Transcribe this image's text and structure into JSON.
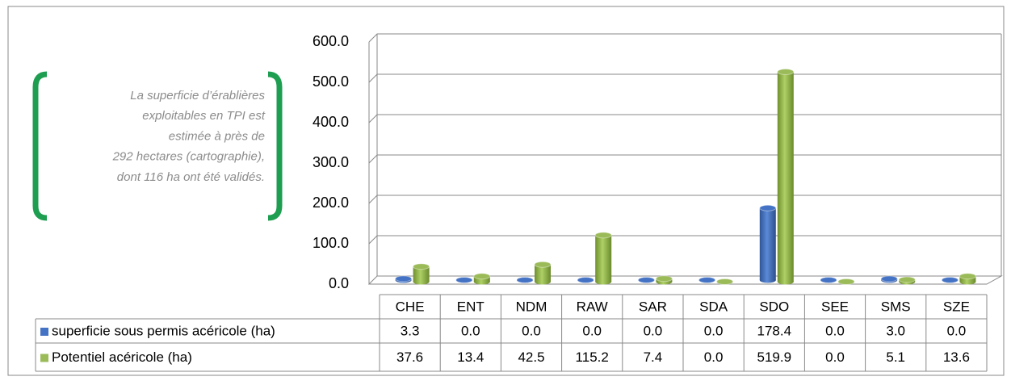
{
  "chart_data": {
    "type": "bar3d",
    "annotation": [
      "La superficie d’érablières",
      "exploitables en TPI est",
      "estimée à près de",
      "292 hectares (cartographie),",
      "dont 116 ha ont été validés."
    ],
    "categories": [
      "CHE",
      "ENT",
      "NDM",
      "RAW",
      "SAR",
      "SDA",
      "SDO",
      "SEE",
      "SMS",
      "SZE"
    ],
    "series": [
      {
        "name": "superficie sous permis acéricole (ha)",
        "color": "#4472c4",
        "values": [
          3.3,
          0,
          0,
          0,
          0,
          0,
          178.4,
          0,
          3.0,
          0
        ],
        "value_labels": [
          "3.3",
          "0.0",
          "0.0",
          "0.0",
          "0.0",
          "0.0",
          "178.4",
          "0.0",
          "3.0",
          "0.0"
        ]
      },
      {
        "name": "Potentiel acéricole (ha)",
        "color": "#9bbb59",
        "values": [
          37.6,
          13.4,
          42.5,
          115.2,
          7.4,
          0,
          519.9,
          0,
          5.1,
          13.6
        ],
        "value_labels": [
          "37.6",
          "13.4",
          "42.5",
          "115.2",
          "7.4",
          "0.0",
          "519.9",
          "0.0",
          "5.1",
          "13.6"
        ]
      }
    ],
    "ylim": [
      0,
      600
    ],
    "yticks": [
      {
        "value": 0,
        "label": "0.0"
      },
      {
        "value": 100,
        "label": "100.0"
      },
      {
        "value": 200,
        "label": "200.0"
      },
      {
        "value": 300,
        "label": "300.0"
      },
      {
        "value": 400,
        "label": "400.0"
      },
      {
        "value": 500,
        "label": "500.0"
      },
      {
        "value": 600,
        "label": "600.0"
      }
    ],
    "grid": true
  }
}
